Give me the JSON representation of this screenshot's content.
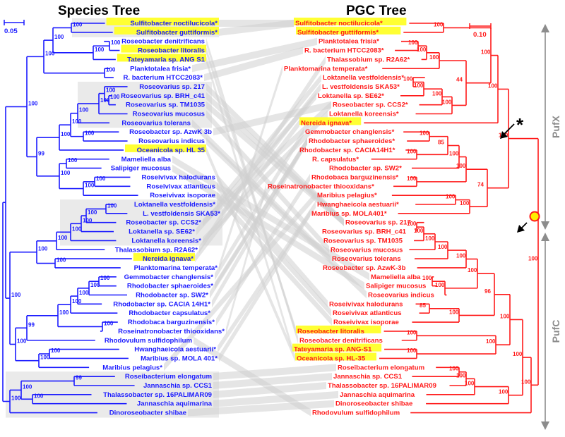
{
  "titles": {
    "left": "Species Tree",
    "right": "PGC Tree"
  },
  "scales": {
    "left": "0.05",
    "right": "0.10"
  },
  "sides": {
    "top": "PufX",
    "bottom": "PufC"
  },
  "marker": "*",
  "colors": {
    "left": "#1a1aff",
    "right": "#ff1a1a",
    "highlight": "#ffff33",
    "band": "#dcdcdc",
    "cross": "#cfcfcf",
    "dot": "#ffee00"
  },
  "species": [
    "Sulfitobacter noctilucicola*",
    "Sulfitobacter guttiformis*",
    "Roseobacter denitrificans",
    "Roseobacter litoralis",
    "Tateyamaria sp. ANG S1",
    "Planktotalea frisia*",
    "R. bacterium HTCC2083*",
    "Roseovarius sp. 217",
    "Roseovarius sp. BRH_c41",
    "Roseovarius sp. TM1035",
    "Roseovarius mucosus",
    "Roseovarius tolerans",
    "Roseobacter sp. AzwK 3b",
    "Roseovarius indicus",
    "Oceanicola sp. HL 35",
    "Mameliella alba",
    "Salipiger mucosus",
    "Roseivivax halodurans",
    "Roseivivax atlanticus",
    "Roseivivax isoporae",
    "Loktanella vestfoldensis*",
    "L. vestfoldensis SKA53*",
    "Roseobacter sp. CCS2*",
    "Loktanella sp. SE62*",
    "Loktanella koreensis*",
    "Thalassobium sp. R2A62*",
    "Nereida ignava*",
    "Planktomarina temperata*",
    "Gemmobacter changlensis*",
    "Rhodobacter sphaeroides*",
    "Rhodobacter sp. SW2*",
    "Rhodobacter sp. CACIA 14H1*",
    "Rhodobacter capsulatus*",
    "Rhodobaca barguzinensis*",
    "Roseinatronobacter thiooxidans*",
    "Rhodovulum sulfidophilum",
    "Hwanghaeicola aestuarii*",
    "Maribius sp. MOLA 401*",
    "Maribius pelagius*",
    "Roseibacterium elongatum",
    "Jannaschia sp. CCS1",
    "Thalassobacter sp. 16PALIMAR09",
    "Jannaschia aquimarina",
    "Dinoroseobacter shibae"
  ],
  "species_highlight": [
    0,
    1,
    3,
    4,
    14,
    26
  ],
  "pgc": [
    "Sulfitobacter noctilucicola*",
    "Sulfitobacter guttiformis*",
    "Planktotalea frisia*",
    "R. bacterium HTCC2083*",
    "Thalassobium sp. R2A62*",
    "Planktomarina temperata*",
    "Loktanella vestfoldensis*",
    "L. vestfoldensis SKA53*",
    "Loktanella sp. SE62*",
    "Roseobacter sp. CCS2*",
    "Loktanella koreensis*",
    "Nereida ignava*",
    "Gemmobacter changlensis*",
    "Rhodobacter sphaeroides*",
    "Rhodobacter sp. CACIA14H1*",
    "R. capsulatus*",
    "Rhodobacter sp. SW2*",
    "Rhodobaca barguzinensis*",
    "Roseinatronobacter thiooxidans*",
    "Maribius pelagius*",
    "Hwanghaeicola aestuarii*",
    "Maribius sp. MOLA401*",
    "Roseovarius sp. 217",
    "Roseovarius sp. BRH_c41",
    "Roseovarius sp. TM1035",
    "Roseovarius mucosus",
    "Roseovarius tolerans",
    "Roseobacter sp. AzwK-3b",
    "Mameliella alba",
    "Salipiger mucosus",
    "Roseovarius indicus",
    "Roseivivax halodurans",
    "Roseivivax atlanticus",
    "Roseivivax isoporae",
    "Roseobacter litoralis",
    "Roseobacter denitrificans",
    "Tateyamaria sp. ANG-S1",
    "Oceanicola sp. HL-35",
    "Roseibacterium elongatum",
    "Jannaschia sp. CCS1",
    "Thalassobacter sp. 16PALIMAR09",
    "Jannaschia aquimarina",
    "Dinoroseobacter shibae",
    "Rhodovulum sulfidophilum"
  ],
  "pgc_highlight": [
    0,
    1,
    11,
    34,
    36,
    37
  ],
  "left_support": [
    "100",
    "100",
    "100",
    "100",
    "100",
    "100",
    "100",
    "100",
    "100",
    "100",
    "100",
    "100",
    "100",
    "100",
    "100",
    "100",
    "100",
    "99",
    "100",
    "100",
    "100",
    "100",
    "100",
    "100",
    "100",
    "100",
    "100",
    "100",
    "100",
    "100",
    "100",
    "100",
    "99",
    "100",
    "100",
    "100",
    "100",
    "100",
    "99",
    "100",
    "100",
    "100",
    "100"
  ],
  "right_support": [
    "100",
    "100",
    "100",
    "100",
    "100",
    "100",
    "100",
    "100",
    "44",
    "100",
    "100",
    "100",
    "100",
    "85",
    "100",
    "100",
    "100",
    "100",
    "100",
    "74",
    "100",
    "100",
    "100",
    "100",
    "100",
    "100",
    "100",
    "100",
    "100",
    "85",
    "100",
    "96",
    "100",
    "100",
    "100",
    "100",
    "100",
    "100",
    "100",
    "100",
    "100",
    "100",
    "100",
    "100",
    "100"
  ]
}
